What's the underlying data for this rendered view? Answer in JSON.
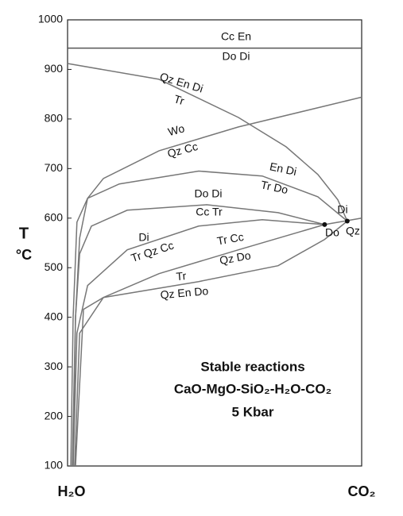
{
  "chart_data": {
    "type": "line",
    "ylabel": "T",
    "yunit": "°C",
    "xlabels": [
      "H₂O",
      "CO₂"
    ],
    "xlim": [
      0,
      1
    ],
    "ylim": [
      100,
      1000
    ],
    "yticks": [
      100,
      200,
      300,
      400,
      500,
      600,
      700,
      800,
      900,
      1000
    ],
    "series": [
      {
        "color": "#555555",
        "x": [
          0,
          1
        ],
        "values": [
          943,
          943
        ]
      },
      {
        "color": "#777777",
        "x": [
          0,
          0.311,
          0.581,
          0.743,
          0.851,
          0.919,
          0.951
        ],
        "values": [
          912,
          880,
          803,
          744,
          688,
          637,
          594
        ]
      },
      {
        "color": "#777777",
        "x": [
          0.019,
          0.027,
          0.041,
          0.068,
          0.122,
          0.311,
          0.581,
          1
        ],
        "values": [
          100,
          400,
          560,
          640,
          680,
          736,
          784,
          844
        ]
      },
      {
        "color": "#777777",
        "x": [
          0.011,
          0.019,
          0.032,
          0.068,
          0.176,
          0.446,
          0.662,
          0.851,
          0.951
        ],
        "values": [
          100,
          400,
          592,
          640,
          669,
          695,
          685,
          643,
          594
        ]
      },
      {
        "color": "#777777",
        "x": [
          0.016,
          0.027,
          0.041,
          0.081,
          0.203,
          0.473,
          0.716,
          0.874
        ],
        "values": [
          100,
          400,
          528,
          584,
          616,
          627,
          611,
          587
        ]
      },
      {
        "color": "#777777",
        "x": [
          0.019,
          0.032,
          0.068,
          0.203,
          0.446,
          0.662,
          0.874
        ],
        "values": [
          100,
          368,
          464,
          536,
          584,
          597,
          587
        ]
      },
      {
        "color": "#777777",
        "x": [
          0.024,
          0.041,
          0.122,
          0.311,
          0.581,
          0.874,
          1
        ],
        "values": [
          100,
          368,
          440,
          488,
          536,
          587,
          600
        ]
      },
      {
        "color": "#777777",
        "x": [
          0.027,
          0.054,
          0.122,
          0.446,
          0.716,
          0.874,
          0.951
        ],
        "values": [
          100,
          416,
          440,
          472,
          504,
          557,
          594
        ]
      }
    ],
    "invariant_points": {
      "color": "#111111",
      "x": [
        0.874,
        0.951
      ],
      "values": [
        587,
        594
      ]
    },
    "annotations": [
      "Cc En",
      "Do Di",
      "Qz En Di",
      "Tr",
      "Wo",
      "Qz Cc",
      "En Di",
      "Tr Do",
      "Do Di",
      "Cc Tr",
      "Di",
      "Tr Qz Cc",
      "Tr Cc",
      "Qz Do",
      "Tr",
      "Qz En Do",
      "Di",
      "Do",
      "Qz"
    ],
    "text_block": [
      "Stable reactions",
      "CaO-MgO-SiO₂-H₂O-CO₂",
      "5 Kbar"
    ]
  }
}
